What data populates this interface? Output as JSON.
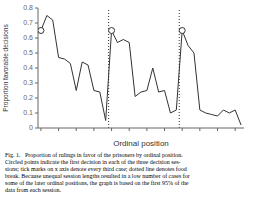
{
  "chart_data": {
    "type": "line",
    "x": [
      1,
      2,
      3,
      4,
      5,
      6,
      7,
      8,
      9,
      10,
      11,
      12,
      13,
      14,
      15,
      16,
      17,
      18,
      19,
      20,
      21,
      22,
      23,
      24,
      25,
      26,
      27,
      28,
      29,
      30,
      31,
      32,
      33,
      34,
      35
    ],
    "values": [
      0.65,
      0.75,
      0.72,
      0.47,
      0.46,
      0.43,
      0.25,
      0.44,
      0.42,
      0.25,
      0.24,
      0.05,
      0.65,
      0.57,
      0.59,
      0.57,
      0.21,
      0.24,
      0.25,
      0.4,
      0.24,
      0.25,
      0.1,
      0.12,
      0.65,
      0.55,
      0.5,
      0.12,
      0.1,
      0.09,
      0.08,
      0.12,
      0.1,
      0.12,
      0.02
    ],
    "color": "#333333",
    "circled_x": [
      1,
      13,
      25
    ],
    "vlines": [
      12.5,
      24.5
    ],
    "x_label": "Ordinal position",
    "y_label": "Proportion favorable decisions",
    "xlim": [
      0.5,
      35.5
    ],
    "xticks": [
      1,
      4,
      7,
      10,
      13,
      16,
      19,
      22,
      25,
      28,
      31,
      34
    ],
    "ylim": [
      0,
      0.8
    ],
    "yticks": [
      0,
      0.1,
      0.2,
      0.3,
      0.4,
      0.5,
      0.6,
      0.7,
      0.8
    ],
    "tick_labels": "y",
    "grid": false,
    "annotations": [
      "Fig. 1.   Proportion of rulings in favor of the prisoners by ordinal position.",
      "Circled points indicate the first decision in each of the three decision ses-",
      "sions; tick marks on x axis denote every third case; dotted line denotes food",
      "break. Because unequal session lengths resulted in a low number of cases for",
      "some of the later ordinal positions, the graph is based on the first 95% of the",
      "data from each session."
    ]
  }
}
